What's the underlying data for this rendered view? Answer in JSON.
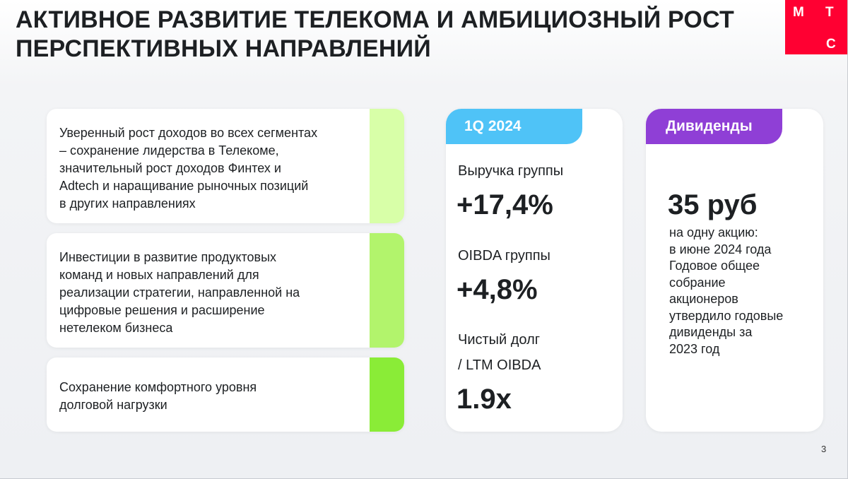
{
  "header": {
    "title_line1": "АКТИВНОЕ РАЗВИТИЕ ТЕЛЕКОМА И АМБИЦИОЗНЫЙ РОСТ",
    "title_line2": "ПЕРСПЕКТИВНЫХ НАПРАВЛЕНИЙ"
  },
  "logo": {
    "letter1": "М",
    "letter2": "Т",
    "letter3": "С",
    "color": "#ff0032"
  },
  "points": [
    {
      "lines": [
        "Уверенный рост доходов во всех сегментах",
        "– сохранение лидерства в Телекоме,",
        "значительный рост доходов Финтех и",
        "Adtech и наращивание рыночных позиций",
        "в других направлениях"
      ],
      "accent": "#d8ffa8"
    },
    {
      "lines": [
        "Инвестиции в развитие продуктовых",
        "команд и новых направлений для",
        "реализации стратегии, направленной на",
        "цифровые решения и расширение",
        "нетелеком бизнеса"
      ],
      "accent": "#b2f46c"
    },
    {
      "lines": [
        "Сохранение комфортного уровня",
        "долговой нагрузки"
      ],
      "accent": "#8aec37"
    }
  ],
  "period_card": {
    "tab_label": "1Q 2024",
    "tab_color": "#4fc3f7",
    "revenue_label": "Выручка группы",
    "revenue_value": "+17,4%",
    "oibda_label": "OIBDA группы",
    "oibda_value": "+4,8%",
    "debt_label_line1": "Чистый долг",
    "debt_label_line2": "/ LTM OIBDA",
    "debt_value": "1.9x"
  },
  "dividend_card": {
    "tab_label": "Дивиденды",
    "tab_color": "#8f3fd6",
    "amount": "35 руб",
    "note_lines": [
      "на одну акцию:",
      "в июне 2024 года",
      "Годовое общее",
      "собрание",
      "акционеров",
      "утвердило годовые",
      "дивиденды за",
      "2023 год"
    ]
  },
  "footer": {
    "page_number": "3"
  }
}
